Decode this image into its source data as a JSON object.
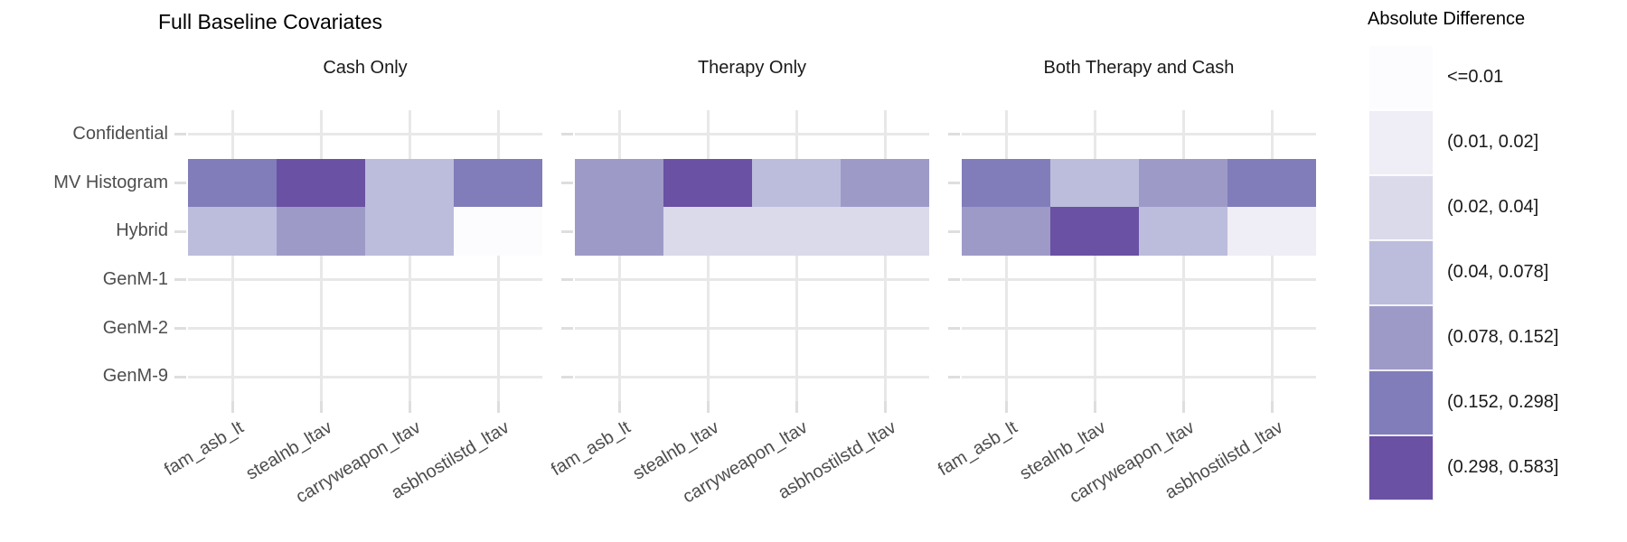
{
  "title": "Full Baseline Covariates",
  "chart_data": {
    "type": "heatmap",
    "title": "Full Baseline Covariates",
    "facets": [
      "Cash Only",
      "Therapy Only",
      "Both Therapy and Cash"
    ],
    "x_categories": [
      "fam_asb_lt",
      "stealnb_ltav",
      "carryweapon_ltav",
      "asbhostilstd_ltav"
    ],
    "y_categories": [
      "Confidential",
      "MV Histogram",
      "Hybrid",
      "GenM-1",
      "GenM-2",
      "GenM-9"
    ],
    "legend": {
      "title": "Absolute Difference",
      "position": "right",
      "bins": [
        {
          "label": "<=0.01",
          "color": "#fcfbfd"
        },
        {
          "label": "(0.01, 0.02]",
          "color": "#efedf5"
        },
        {
          "label": "(0.02, 0.04]",
          "color": "#dadaeb"
        },
        {
          "label": "(0.04, 0.078]",
          "color": "#bcbddc"
        },
        {
          "label": "(0.078, 0.152]",
          "color": "#9e9ac8"
        },
        {
          "label": "(0.152, 0.298]",
          "color": "#807dba"
        },
        {
          "label": "(0.298, 0.583]",
          "color": "#6a51a3"
        }
      ]
    },
    "cells_encoding": "1-based index into legend.bins; rows not listed have no tiles (blank)",
    "cells": {
      "Cash Only": {
        "MV Histogram": [
          6,
          7,
          4,
          6
        ],
        "Hybrid": [
          4,
          5,
          4,
          1
        ]
      },
      "Therapy Only": {
        "MV Histogram": [
          5,
          7,
          4,
          5
        ],
        "Hybrid": [
          5,
          3,
          3,
          3
        ]
      },
      "Both Therapy and Cash": {
        "MV Histogram": [
          6,
          4,
          5,
          6
        ],
        "Hybrid": [
          5,
          7,
          4,
          2
        ]
      }
    },
    "grid": true
  }
}
